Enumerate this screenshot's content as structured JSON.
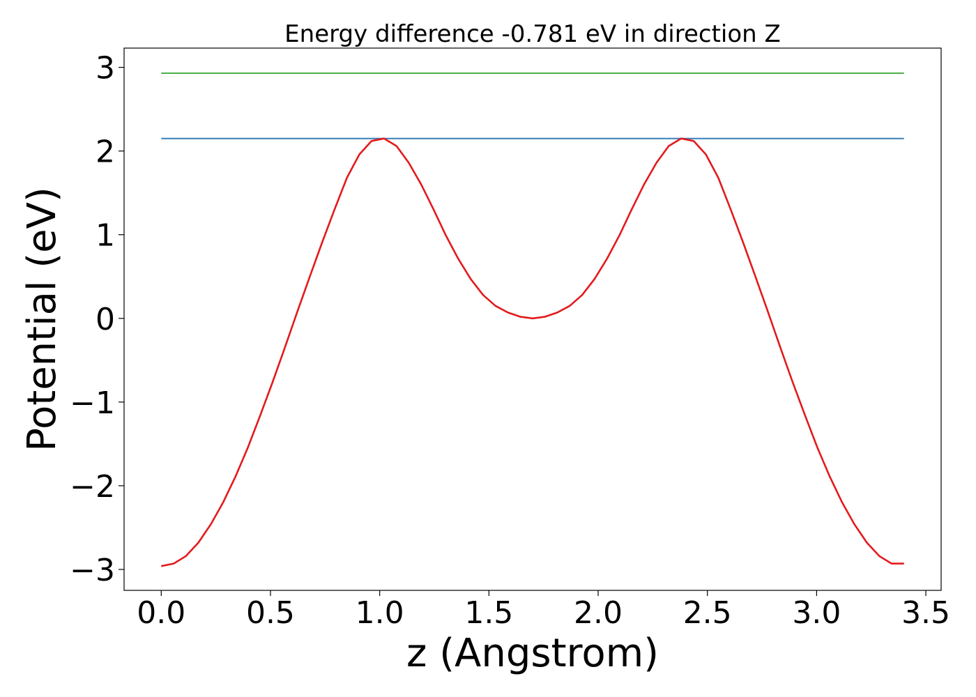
{
  "chart_data": {
    "type": "line",
    "title": "Energy difference -0.781 eV in direction Z",
    "xlabel": "z (Angstrom)",
    "ylabel": "Potential (eV)",
    "xlim": [
      -0.17,
      3.57
    ],
    "ylim": [
      -3.25,
      3.23
    ],
    "xticks": [
      0.0,
      0.5,
      1.0,
      1.5,
      2.0,
      2.5,
      3.0,
      3.5
    ],
    "xtick_labels": [
      "0.0",
      "0.5",
      "1.0",
      "1.5",
      "2.0",
      "2.5",
      "3.0",
      "3.5"
    ],
    "yticks": [
      3,
      2,
      1,
      0,
      -1,
      -2,
      -3
    ],
    "ytick_labels": [
      "3",
      "2",
      "1",
      "0",
      "−1",
      "−2",
      "−3"
    ],
    "grid": false,
    "colors": {
      "potential": "#e31a1c",
      "upper": "#4daf4a",
      "lower": "#377eb8"
    },
    "series": [
      {
        "key": "upper",
        "x": [
          0.0,
          3.4
        ],
        "y": [
          2.93,
          2.93
        ]
      },
      {
        "key": "lower",
        "x": [
          0.0,
          3.4
        ],
        "y": [
          2.15,
          2.15
        ]
      },
      {
        "key": "potential",
        "x": [
          0.0,
          0.057,
          0.113,
          0.17,
          0.227,
          0.283,
          0.34,
          0.397,
          0.453,
          0.51,
          0.567,
          0.623,
          0.68,
          0.737,
          0.793,
          0.85,
          0.907,
          0.963,
          1.02,
          1.077,
          1.133,
          1.19,
          1.247,
          1.303,
          1.36,
          1.417,
          1.473,
          1.53,
          1.587,
          1.643,
          1.7,
          1.757,
          1.813,
          1.87,
          1.927,
          1.983,
          2.04,
          2.097,
          2.153,
          2.21,
          2.267,
          2.323,
          2.38,
          2.437,
          2.493,
          2.55,
          2.607,
          2.663,
          2.72,
          2.777,
          2.833,
          2.89,
          2.947,
          3.003,
          3.06,
          3.117,
          3.173,
          3.23,
          3.287,
          3.343,
          3.4
        ],
        "y": [
          -2.96,
          -2.93,
          -2.84,
          -2.68,
          -2.46,
          -2.2,
          -1.89,
          -1.54,
          -1.16,
          -0.76,
          -0.34,
          0.08,
          0.5,
          0.91,
          1.3,
          1.68,
          1.96,
          2.12,
          2.15,
          2.06,
          1.86,
          1.6,
          1.3,
          0.99,
          0.71,
          0.47,
          0.28,
          0.15,
          0.07,
          0.02,
          0.0,
          0.02,
          0.07,
          0.15,
          0.28,
          0.47,
          0.71,
          0.99,
          1.3,
          1.6,
          1.86,
          2.06,
          2.15,
          2.12,
          1.96,
          1.68,
          1.3,
          0.91,
          0.5,
          0.08,
          -0.34,
          -0.76,
          -1.16,
          -1.54,
          -1.89,
          -2.2,
          -2.46,
          -2.68,
          -2.84,
          -2.93,
          -2.93
        ]
      }
    ]
  }
}
